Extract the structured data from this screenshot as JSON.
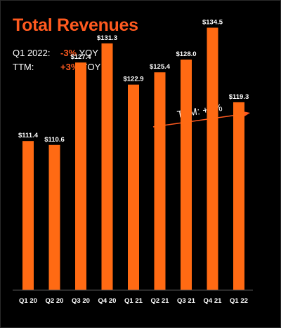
{
  "title": "Total Revenues",
  "stats": [
    {
      "label": "Q1 2022:",
      "value": "-3%",
      "suffix": "YOY"
    },
    {
      "label": "TTM:",
      "value": "+3%",
      "suffix": "YOY"
    }
  ],
  "annotation": "TTM: +3%",
  "colors": {
    "accent": "#ff5a1f",
    "bar": "#ff6a13",
    "background": "#000000",
    "text": "#ffffff"
  },
  "chart_data": {
    "type": "bar",
    "categories": [
      "Q1 20",
      "Q2 20",
      "Q3 20",
      "Q4 20",
      "Q1 21",
      "Q2 21",
      "Q3 21",
      "Q4 21",
      "Q1 22"
    ],
    "values": [
      111.4,
      110.6,
      127.4,
      131.3,
      122.9,
      125.4,
      128.0,
      134.5,
      119.3
    ],
    "data_labels": [
      "$111.4",
      "$110.6",
      "$127.4",
      "$131.3",
      "$122.9",
      "$125.4",
      "$128.0",
      "$134.5",
      "$119.3"
    ],
    "title": "Total Revenues",
    "xlabel": "",
    "ylabel": "",
    "grid": false,
    "legend": "none"
  }
}
